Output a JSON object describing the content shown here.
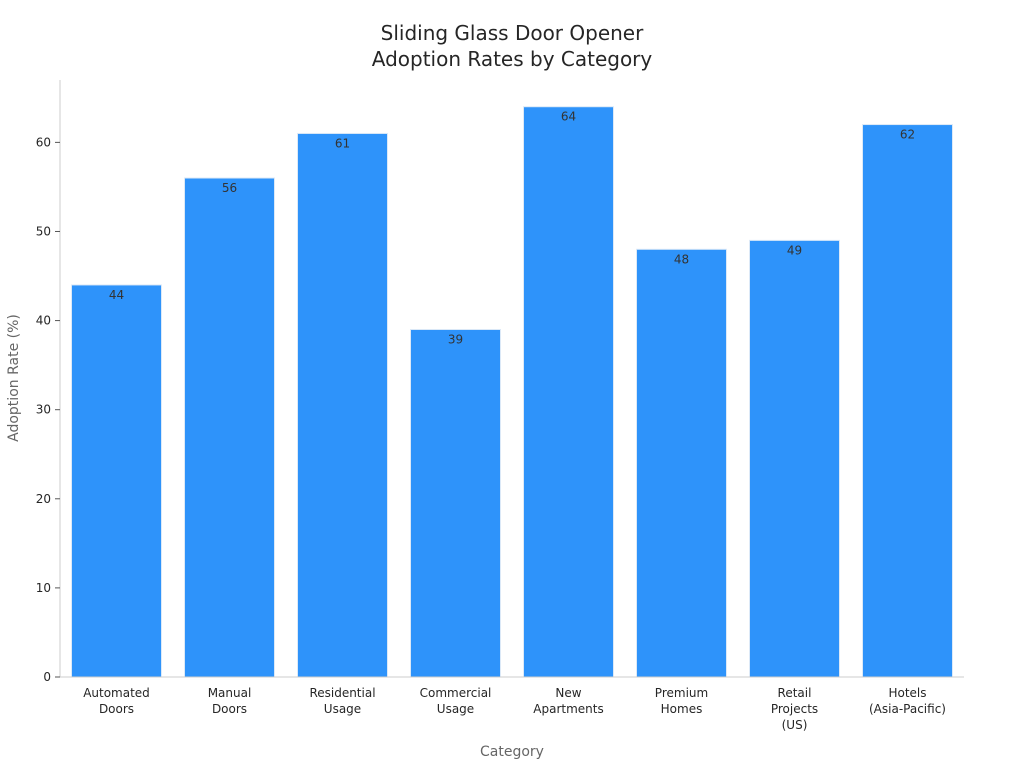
{
  "chart_data": {
    "type": "bar",
    "title_lines": [
      "Sliding Glass Door Opener",
      "Adoption Rates by Category"
    ],
    "xlabel": "Category",
    "ylabel": "Adoption Rate (%)",
    "categories": [
      [
        "Automated",
        "Doors"
      ],
      [
        "Manual",
        "Doors"
      ],
      [
        "Residential",
        "Usage"
      ],
      [
        "Commercial",
        "Usage"
      ],
      [
        "New",
        "Apartments"
      ],
      [
        "Premium",
        "Homes"
      ],
      [
        "Retail",
        "Projects",
        "(US)"
      ],
      [
        "Hotels",
        "(Asia-Pacific)"
      ]
    ],
    "values": [
      44,
      56,
      61,
      39,
      64,
      48,
      49,
      62
    ],
    "ylim": [
      0,
      67
    ],
    "yticks": [
      0,
      10,
      20,
      30,
      40,
      50,
      60
    ],
    "grid": false,
    "legend": "none",
    "colors": {
      "bar": "#2e93fa",
      "bar_edge": "#dce9f7",
      "axis": "#cccccc"
    }
  }
}
